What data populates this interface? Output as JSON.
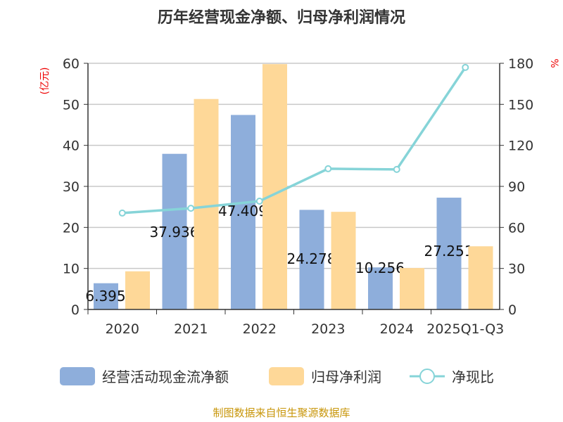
{
  "chart_data": {
    "type": "bar",
    "title": "历年经营现金净额、归母净利润情况",
    "categories": [
      "2020",
      "2021",
      "2022",
      "2023",
      "2024",
      "2025Q1-Q3"
    ],
    "series": [
      {
        "name": "经营活动现金流净额",
        "type": "bar",
        "axis": "left",
        "color": "#8eaedb",
        "values": [
          6.395,
          37.936,
          47.409,
          24.278,
          10.256,
          27.251
        ],
        "labels": [
          "6.395",
          "37.936",
          "47.409",
          "24.278",
          "10.256",
          "27.251"
        ]
      },
      {
        "name": "归母净利润",
        "type": "bar",
        "axis": "left",
        "color": "#fed898",
        "values": [
          9.3,
          51.3,
          59.8,
          23.8,
          10.1,
          15.4
        ]
      },
      {
        "name": "净现比",
        "type": "line",
        "axis": "right",
        "color": "#86d4d8",
        "values": [
          70.5,
          74.0,
          79.2,
          102.9,
          102.4,
          177.0
        ]
      }
    ],
    "ylabel_left": "(亿元)",
    "ylabel_right": "%",
    "ylim_left": [
      0,
      60
    ],
    "yticks_left": [
      0,
      10,
      20,
      30,
      40,
      50,
      60
    ],
    "ylim_right": [
      0,
      180
    ],
    "yticks_right": [
      0,
      30,
      60,
      90,
      120,
      150,
      180
    ],
    "grid": true,
    "legend_position": "bottom"
  },
  "source": "制图数据来自恒生聚源数据库"
}
